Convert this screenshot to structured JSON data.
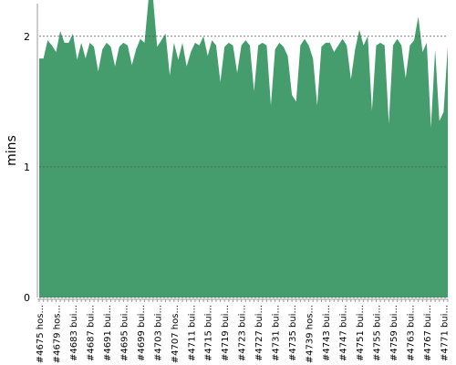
{
  "chart_data": {
    "type": "area",
    "y_label": "mins",
    "categories": [
      "#4675 hos...",
      null,
      null,
      null,
      "#4679 hos...",
      null,
      null,
      null,
      "#4683 bui...",
      null,
      null,
      null,
      "#4687 bui...",
      null,
      null,
      null,
      "#4691 bui...",
      null,
      null,
      null,
      "#4695 bui...",
      null,
      null,
      null,
      "#4699 bui...",
      null,
      null,
      null,
      "#4703 bui...",
      null,
      null,
      null,
      "#4707 hos...",
      null,
      null,
      null,
      "#4711 bui...",
      null,
      null,
      null,
      "#4715 bui...",
      null,
      null,
      null,
      "#4719 bui...",
      null,
      null,
      null,
      "#4723 bui...",
      null,
      null,
      null,
      "#4727 bui...",
      null,
      null,
      null,
      "#4731 bui...",
      null,
      null,
      null,
      "#4735 bui...",
      null,
      null,
      null,
      "#4739 hos...",
      null,
      null,
      null,
      "#4743 bui...",
      null,
      null,
      null,
      "#4747 bui...",
      null,
      null,
      null,
      "#4751 bui...",
      null,
      null,
      null,
      "#4755 bui...",
      null,
      null,
      null,
      "#4759 bui...",
      null,
      null,
      null,
      "#4763 bui...",
      null,
      null,
      null,
      "#4767 bui...",
      null,
      null,
      null,
      "#4771 bui...",
      null
    ],
    "values": [
      1.83,
      1.83,
      1.97,
      1.93,
      1.88,
      2.04,
      1.95,
      1.95,
      2.02,
      1.82,
      1.95,
      1.83,
      1.95,
      1.92,
      1.73,
      1.9,
      1.95,
      1.92,
      1.77,
      1.92,
      1.95,
      1.93,
      1.78,
      1.9,
      1.98,
      1.95,
      2.3,
      2.3,
      1.92,
      1.97,
      2.02,
      1.7,
      1.95,
      1.82,
      1.95,
      1.77,
      1.88,
      1.95,
      1.93,
      2.0,
      1.85,
      1.97,
      1.93,
      1.65,
      1.92,
      1.95,
      1.93,
      1.72,
      1.93,
      1.97,
      1.93,
      1.58,
      1.93,
      1.95,
      1.93,
      1.47,
      1.9,
      1.95,
      1.92,
      1.85,
      1.55,
      1.5,
      1.93,
      1.98,
      1.93,
      1.83,
      1.47,
      1.92,
      1.95,
      1.95,
      1.88,
      1.93,
      1.98,
      1.93,
      1.67,
      1.9,
      2.05,
      1.93,
      2.0,
      1.43,
      1.93,
      1.95,
      1.93,
      1.33,
      1.93,
      1.98,
      1.93,
      1.68,
      1.93,
      1.97,
      2.15,
      1.88,
      1.95,
      1.3,
      1.9,
      1.35,
      1.42,
      1.92
    ],
    "color": "#459c6c",
    "ylim": [
      0,
      2.25
    ],
    "yticks": [
      0,
      1,
      2
    ],
    "grid": true
  }
}
